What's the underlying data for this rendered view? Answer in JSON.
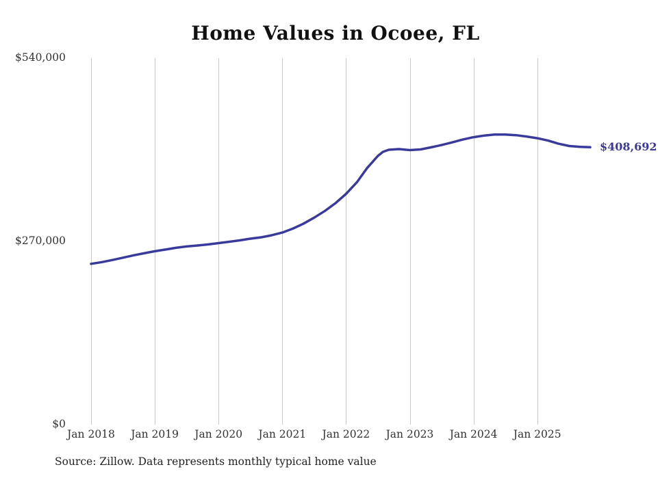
{
  "title": "Home Values in Ocoee, FL",
  "source_note": "Source: Zillow. Data represents monthly typical home value",
  "chart_data": {
    "type": "line",
    "title": "Home Values in Ocoee, FL",
    "xlabel": "",
    "ylabel": "",
    "grid": "vertical-only",
    "legend": "none",
    "ylim": [
      0,
      540000
    ],
    "xlim": [
      2018.0,
      2026.0
    ],
    "x_tick_years": [
      2018,
      2019,
      2020,
      2021,
      2022,
      2023,
      2024,
      2025
    ],
    "x_tick_labels": [
      "Jan 2018",
      "Jan 2019",
      "Jan 2020",
      "Jan 2021",
      "Jan 2022",
      "Jan 2023",
      "Jan 2024",
      "Jan 2025"
    ],
    "y_ticks": [
      0,
      270000,
      540000
    ],
    "y_tick_labels": [
      "$0",
      "$270,000",
      "$540,000"
    ],
    "end_label": "$408,692",
    "end_value": 408692,
    "colors": {
      "line": "#3a3a9d",
      "grid": "#c9c9c9",
      "text": "#333333",
      "title": "#111111"
    },
    "series": [
      {
        "name": "Typical home value (monthly)",
        "x": [
          2018.0,
          2018.17,
          2018.33,
          2018.5,
          2018.67,
          2018.83,
          2019.0,
          2019.17,
          2019.33,
          2019.5,
          2019.67,
          2019.83,
          2020.0,
          2020.17,
          2020.33,
          2020.5,
          2020.67,
          2020.83,
          2021.0,
          2021.17,
          2021.33,
          2021.5,
          2021.67,
          2021.83,
          2022.0,
          2022.17,
          2022.33,
          2022.5,
          2022.58,
          2022.67,
          2022.83,
          2023.0,
          2023.17,
          2023.33,
          2023.5,
          2023.67,
          2023.83,
          2024.0,
          2024.17,
          2024.33,
          2024.5,
          2024.67,
          2024.83,
          2025.0,
          2025.17,
          2025.33,
          2025.5,
          2025.67,
          2025.83
        ],
        "values": [
          237000,
          239500,
          242500,
          246000,
          249500,
          252500,
          255500,
          258000,
          260500,
          262500,
          264000,
          265500,
          267500,
          269500,
          271500,
          274000,
          276000,
          279000,
          283000,
          289000,
          296000,
          305000,
          315000,
          326000,
          340000,
          357000,
          378000,
          396000,
          402000,
          405000,
          406000,
          404500,
          405500,
          408500,
          412000,
          416000,
          420000,
          423500,
          426000,
          427500,
          427500,
          426500,
          424500,
          422000,
          418500,
          414000,
          410500,
          409200,
          408692
        ]
      }
    ]
  }
}
